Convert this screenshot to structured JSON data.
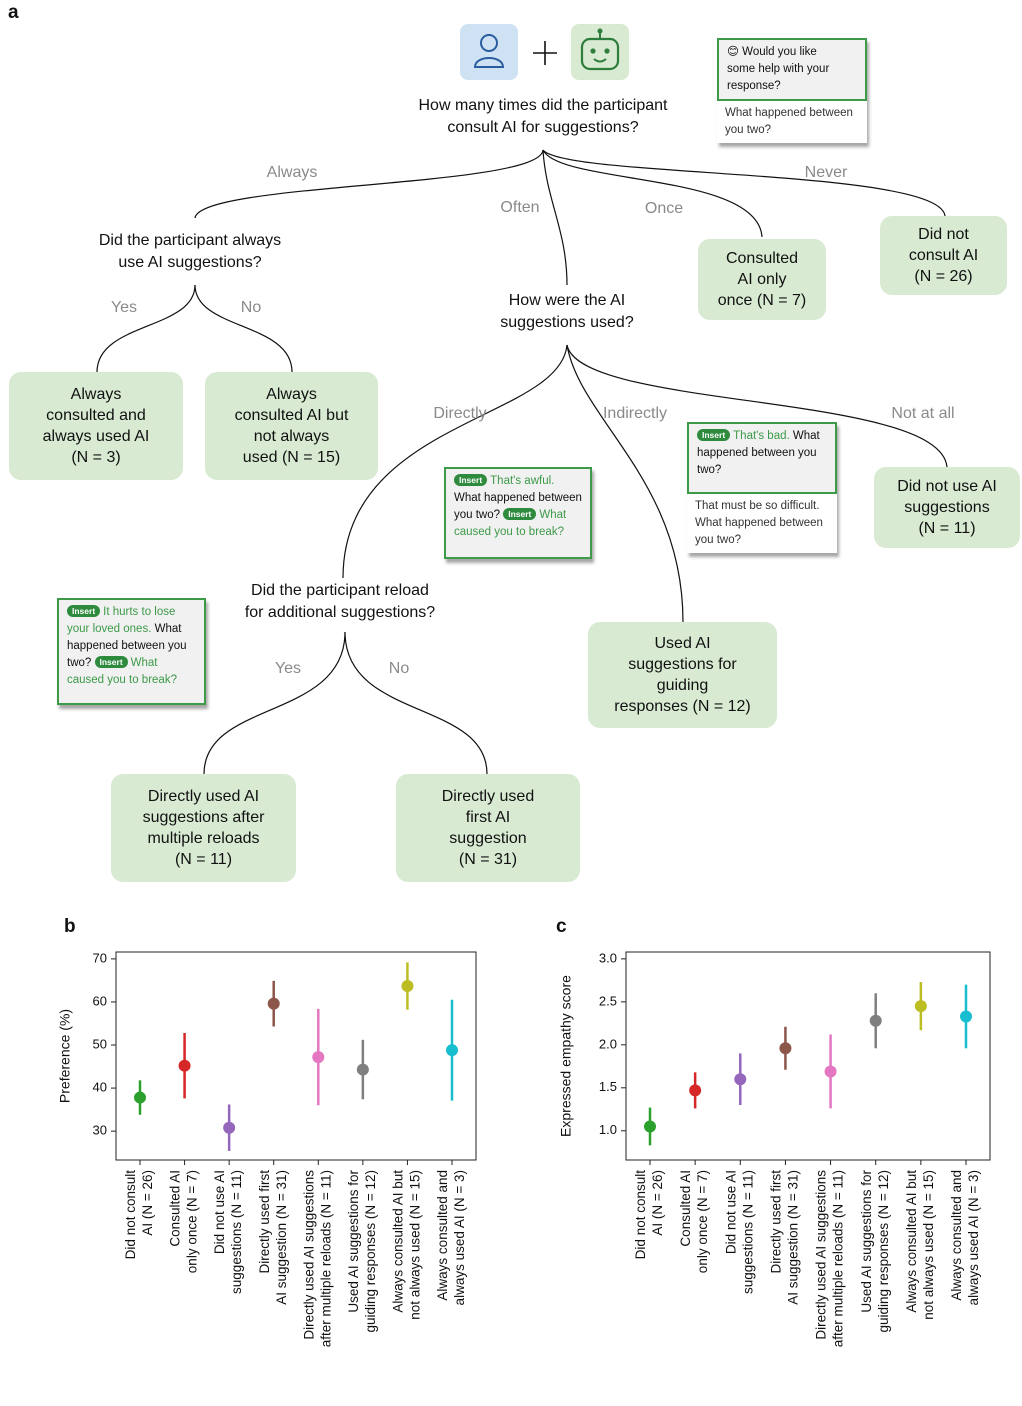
{
  "panel_labels": {
    "a": "a",
    "b": "b",
    "c": "c"
  },
  "diagram": {
    "questions": [
      {
        "lines": [
          "How many times did the participant",
          "consult AI for suggestions?"
        ]
      },
      {
        "lines": [
          "Did the participant always",
          "use AI suggestions?"
        ]
      },
      {
        "lines": [
          "How were the AI",
          "suggestions used?"
        ]
      },
      {
        "lines": [
          "Did the participant reload",
          "for additional suggestions?"
        ]
      }
    ],
    "edge_labels": [
      "Always",
      "Often",
      "Once",
      "Never",
      "Yes",
      "No",
      "Directly",
      "Indirectly",
      "Not at all",
      "Yes",
      "No"
    ],
    "leaves": [
      {
        "lines": [
          "Always",
          "consulted and",
          "always used AI",
          "(N = 3)"
        ]
      },
      {
        "lines": [
          "Always",
          "consulted AI but",
          "not always",
          "used (N = 15)"
        ]
      },
      {
        "lines": [
          "Consulted",
          "AI only",
          "once (N = 7)"
        ]
      },
      {
        "lines": [
          "Did not",
          "consult AI",
          "(N = 26)"
        ]
      },
      {
        "lines": [
          "Did not use AI",
          "suggestions",
          "(N = 11)"
        ]
      },
      {
        "lines": [
          "Used AI",
          "suggestions for",
          "guiding",
          "responses (N = 12)"
        ]
      },
      {
        "lines": [
          "Directly used AI",
          "suggestions after",
          "multiple reloads",
          "(N = 11)"
        ]
      },
      {
        "lines": [
          "Directly used",
          "first AI",
          "suggestion",
          "(N = 31)"
        ]
      }
    ],
    "mockups": [
      {
        "prompt": "😊 Would you like some help with your response?",
        "reply": "What happened between you two?"
      },
      {
        "insert_1": "Insert",
        "suggestion_1": "That's awful.",
        "text": "What happened between you two?",
        "insert_2": "Insert",
        "suggestion_2": "What caused you to break?"
      },
      {
        "insert": "Insert",
        "suggestion": "That's bad.",
        "text": "What happened between you two?",
        "reply": "That must be so difficult. What happened between you two?"
      },
      {
        "insert_1": "Insert",
        "suggestion_1": "It hurts to lose your loved ones.",
        "text": "What happened between you two?",
        "insert_2": "Insert",
        "suggestion_2": "What caused you to break?"
      }
    ]
  },
  "chart_data": [
    {
      "type": "errorbar",
      "ylabel": "Preference (%)",
      "categories": [
        [
          "Did not consult",
          "AI (N = 26)"
        ],
        [
          "Consulted AI",
          "only once (N = 7)"
        ],
        [
          "Did not use AI",
          "suggestions (N = 11)"
        ],
        [
          "Directly used first",
          "AI suggestion (N = 31)"
        ],
        [
          "Directly used AI suggestions",
          "after multiple reloads (N = 11)"
        ],
        [
          "Used AI suggestions for",
          "guiding responses (N = 12)"
        ],
        [
          "Always consulted AI but",
          "not always used (N = 15)"
        ],
        [
          "Always consulted and",
          "always used AI (N = 3)"
        ]
      ],
      "values": [
        37.8,
        45.2,
        30.8,
        59.6,
        47.2,
        44.3,
        63.7,
        48.8
      ],
      "errors": [
        4,
        7.6,
        5.4,
        5.3,
        11.2,
        6.9,
        5.5,
        11.7
      ],
      "colors": [
        "#2ca02c",
        "#d62728",
        "#9467bd",
        "#8c564b",
        "#e377c2",
        "#7f7f7f",
        "#bcbd22",
        "#17becf"
      ],
      "ylim": [
        23.3,
        71.6
      ],
      "yticks": [
        30,
        40,
        50,
        60,
        70
      ]
    },
    {
      "type": "errorbar",
      "ylabel": "Expressed empathy score",
      "categories": [
        [
          "Did not consult",
          "AI (N = 26)"
        ],
        [
          "Consulted AI",
          "only once (N = 7)"
        ],
        [
          "Did not use AI",
          "suggestions (N = 11)"
        ],
        [
          "Directly used first",
          "AI suggestion (N = 31)"
        ],
        [
          "Directly used AI suggestions",
          "after multiple reloads (N = 11)"
        ],
        [
          "Used AI suggestions for",
          "guiding responses (N = 12)"
        ],
        [
          "Always consulted AI but",
          "not always used (N = 15)"
        ],
        [
          "Always consulted and",
          "always used AI (N = 3)"
        ]
      ],
      "values": [
        1.05,
        1.47,
        1.6,
        1.96,
        1.69,
        2.28,
        2.45,
        2.33
      ],
      "errors": [
        0.22,
        0.21,
        0.3,
        0.25,
        0.43,
        0.32,
        0.28,
        0.37
      ],
      "colors": [
        "#2ca02c",
        "#d62728",
        "#9467bd",
        "#8c564b",
        "#e377c2",
        "#7f7f7f",
        "#bcbd22",
        "#17becf"
      ],
      "ylim": [
        0.66,
        3.08
      ],
      "yticks": [
        {
          "value": 1,
          "label": "1.0"
        },
        1.5,
        {
          "value": 2,
          "label": "2.0"
        },
        2.5,
        {
          "value": 3,
          "label": "3.0"
        }
      ]
    }
  ]
}
